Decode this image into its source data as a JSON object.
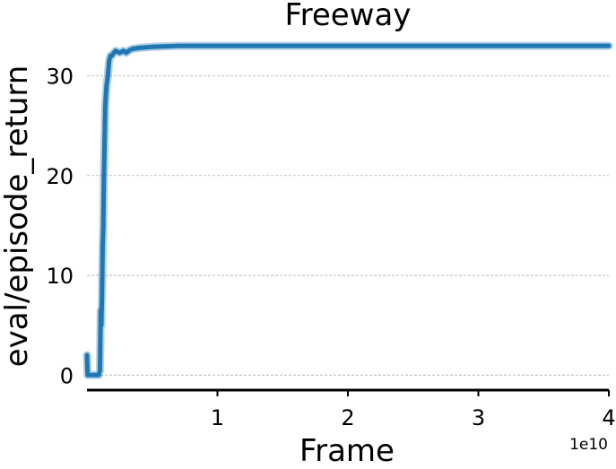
{
  "chart_data": {
    "type": "line",
    "title": "Freeway",
    "xlabel": "Frame",
    "ylabel": "eval/episode_return",
    "x_offset_label": "1e10",
    "xlim": [
      0,
      4
    ],
    "ylim": [
      -1.5,
      34
    ],
    "x_ticks": [
      1,
      2,
      3,
      4
    ],
    "x_tick_labels": [
      "1",
      "2",
      "3",
      "4"
    ],
    "y_ticks": [
      0,
      10,
      20,
      30
    ],
    "y_tick_labels": [
      "0",
      "10",
      "20",
      "30"
    ],
    "grid": "y-dashed",
    "series": [
      {
        "color": "#1f77b4",
        "x": [
          0.0,
          0.005,
          0.01,
          0.05,
          0.09,
          0.1,
          0.105,
          0.11,
          0.115,
          0.12,
          0.125,
          0.13,
          0.14,
          0.15,
          0.16,
          0.17,
          0.18,
          0.19,
          0.2,
          0.22,
          0.25,
          0.28,
          0.3,
          0.33,
          0.35,
          0.4,
          0.5,
          0.7,
          1.0,
          1.5,
          2.0,
          2.5,
          3.0,
          3.5,
          4.0
        ],
        "values": [
          2.0,
          0.0,
          0.0,
          0.0,
          0.0,
          0.5,
          6.5,
          5.0,
          8.0,
          13.0,
          15.0,
          20.0,
          27.0,
          29.0,
          30.0,
          31.5,
          32.0,
          32.0,
          32.2,
          32.5,
          32.3,
          32.5,
          32.3,
          32.6,
          32.7,
          32.8,
          32.9,
          33.0,
          33.0,
          33.0,
          33.0,
          33.0,
          33.0,
          33.0,
          33.0
        ]
      }
    ]
  }
}
